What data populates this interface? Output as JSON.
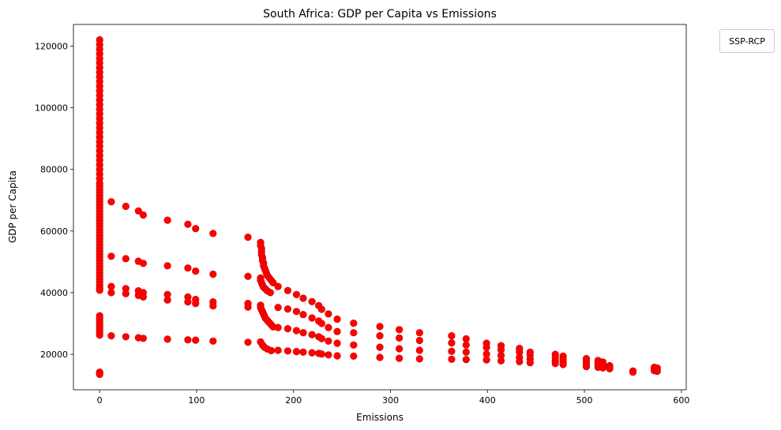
{
  "chart_data": {
    "type": "scatter",
    "title": "South Africa: GDP per Capita vs Emissions",
    "xlabel": "Emissions",
    "ylabel": "GDP per Capita",
    "xlim": [
      -27,
      605
    ],
    "ylim": [
      8500,
      127000
    ],
    "xticks": [
      0,
      100,
      200,
      300,
      400,
      500,
      600
    ],
    "yticks": [
      20000,
      40000,
      60000,
      80000,
      100000,
      120000
    ],
    "grid": false,
    "legend": {
      "title": "SSP-RCP",
      "placement": "outside-top-right"
    },
    "marker_color": "#ff0000",
    "marker_edge_color": "#cc0000",
    "series": [
      {
        "points": [
          [
            0,
            122000
          ],
          [
            0,
            120500
          ],
          [
            0,
            119000
          ],
          [
            0,
            117500
          ],
          [
            0,
            116000
          ],
          [
            0,
            114500
          ],
          [
            0,
            113000
          ],
          [
            0,
            111500
          ],
          [
            0,
            110000
          ],
          [
            0,
            108500
          ],
          [
            0,
            107000
          ],
          [
            0,
            105500
          ],
          [
            0,
            104000
          ],
          [
            0,
            102500
          ],
          [
            0,
            101000
          ],
          [
            0,
            99500
          ],
          [
            0,
            98000
          ],
          [
            0,
            96500
          ],
          [
            0,
            95000
          ],
          [
            0,
            93500
          ],
          [
            0,
            92000
          ],
          [
            0,
            90500
          ],
          [
            0,
            89000
          ],
          [
            0,
            87500
          ],
          [
            0,
            86000
          ],
          [
            0,
            84500
          ],
          [
            0,
            83000
          ],
          [
            0,
            81500
          ],
          [
            0,
            80000
          ],
          [
            0,
            78500
          ],
          [
            0,
            77000
          ],
          [
            0,
            75500
          ],
          [
            0,
            74500
          ],
          [
            0,
            73500
          ],
          [
            0,
            72500
          ],
          [
            0,
            71500
          ],
          [
            0,
            70500
          ],
          [
            0,
            69500
          ],
          [
            0,
            68500
          ],
          [
            0,
            67500
          ],
          [
            0,
            66500
          ],
          [
            0,
            65500
          ],
          [
            0,
            64500
          ],
          [
            0,
            63500
          ],
          [
            0,
            62500
          ],
          [
            0,
            61500
          ],
          [
            0,
            60500
          ],
          [
            0,
            59500
          ],
          [
            0,
            58500
          ],
          [
            0,
            57500
          ],
          [
            0,
            56500
          ],
          [
            0,
            55500
          ],
          [
            0,
            54500
          ],
          [
            0,
            53500
          ],
          [
            0,
            52500
          ],
          [
            0,
            51500
          ],
          [
            0,
            50500
          ],
          [
            0,
            49500
          ],
          [
            0,
            48500
          ],
          [
            0,
            47500
          ],
          [
            0,
            46500
          ],
          [
            0,
            45500
          ],
          [
            0,
            44500
          ],
          [
            0,
            43500
          ],
          [
            0,
            42500
          ],
          [
            0,
            41500
          ],
          [
            0,
            40800
          ],
          [
            0,
            32500
          ],
          [
            0,
            31800
          ],
          [
            0,
            31000
          ],
          [
            0,
            30200
          ],
          [
            0,
            29400
          ],
          [
            0,
            28600
          ],
          [
            0,
            27800
          ],
          [
            0,
            27000
          ],
          [
            0,
            26200
          ],
          [
            0,
            14200
          ],
          [
            0,
            13800
          ],
          [
            0,
            13500
          ],
          [
            12,
            69500
          ],
          [
            27,
            68000
          ],
          [
            40,
            66500
          ],
          [
            45,
            65200
          ],
          [
            70,
            63500
          ],
          [
            91,
            62200
          ],
          [
            99,
            60800
          ],
          [
            117,
            59200
          ],
          [
            153,
            58000
          ],
          [
            166,
            56300
          ],
          [
            166,
            55300
          ],
          [
            167,
            54300
          ],
          [
            167,
            53300
          ],
          [
            167,
            52300
          ],
          [
            168,
            51400
          ],
          [
            168,
            50500
          ],
          [
            169,
            49600
          ],
          [
            169,
            48800
          ],
          [
            170,
            48000
          ],
          [
            171,
            47200
          ],
          [
            172,
            46400
          ],
          [
            173,
            45600
          ],
          [
            175,
            44800
          ],
          [
            177,
            44000
          ],
          [
            179,
            43200
          ],
          [
            12,
            51800
          ],
          [
            27,
            51000
          ],
          [
            40,
            50200
          ],
          [
            45,
            49500
          ],
          [
            70,
            48700
          ],
          [
            91,
            48000
          ],
          [
            99,
            47000
          ],
          [
            117,
            46000
          ],
          [
            153,
            45300
          ],
          [
            166,
            44800
          ],
          [
            166,
            44000
          ],
          [
            167,
            43200
          ],
          [
            168,
            42500
          ],
          [
            169,
            41800
          ],
          [
            171,
            41200
          ],
          [
            173,
            40600
          ],
          [
            176,
            40000
          ],
          [
            184,
            42000
          ],
          [
            194,
            40700
          ],
          [
            203,
            39400
          ],
          [
            210,
            38200
          ],
          [
            219,
            37100
          ],
          [
            226,
            35800
          ],
          [
            229,
            34600
          ],
          [
            236,
            33100
          ],
          [
            245,
            31400
          ],
          [
            12,
            42000
          ],
          [
            27,
            41300
          ],
          [
            40,
            40600
          ],
          [
            45,
            40000
          ],
          [
            70,
            39400
          ],
          [
            91,
            38600
          ],
          [
            99,
            37800
          ],
          [
            117,
            37000
          ],
          [
            153,
            36500
          ],
          [
            166,
            35900
          ],
          [
            166,
            35200
          ],
          [
            167,
            34500
          ],
          [
            168,
            33800
          ],
          [
            169,
            33100
          ],
          [
            170,
            32400
          ],
          [
            171,
            31700
          ],
          [
            173,
            31000
          ],
          [
            175,
            30300
          ],
          [
            177,
            29600
          ],
          [
            179,
            28900
          ],
          [
            184,
            35200
          ],
          [
            194,
            34700
          ],
          [
            203,
            33900
          ],
          [
            210,
            32900
          ],
          [
            219,
            31800
          ],
          [
            226,
            30800
          ],
          [
            229,
            30000
          ],
          [
            236,
            28700
          ],
          [
            245,
            27400
          ],
          [
            12,
            40000
          ],
          [
            27,
            39700
          ],
          [
            40,
            39100
          ],
          [
            45,
            38600
          ],
          [
            70,
            37600
          ],
          [
            91,
            37000
          ],
          [
            99,
            36500
          ],
          [
            117,
            35700
          ],
          [
            153,
            35300
          ],
          [
            184,
            28700
          ],
          [
            194,
            28300
          ],
          [
            203,
            27700
          ],
          [
            210,
            27000
          ],
          [
            219,
            26400
          ],
          [
            226,
            25700
          ],
          [
            229,
            25100
          ],
          [
            236,
            24300
          ],
          [
            245,
            23600
          ],
          [
            166,
            24000
          ],
          [
            168,
            23000
          ],
          [
            170,
            22300
          ],
          [
            173,
            21700
          ],
          [
            177,
            21200
          ],
          [
            184,
            21300
          ],
          [
            194,
            21100
          ],
          [
            203,
            20900
          ],
          [
            210,
            20700
          ],
          [
            219,
            20500
          ],
          [
            226,
            20300
          ],
          [
            229,
            20100
          ],
          [
            236,
            19800
          ],
          [
            245,
            19500
          ],
          [
            12,
            26000
          ],
          [
            27,
            25700
          ],
          [
            40,
            25400
          ],
          [
            45,
            25200
          ],
          [
            70,
            24900
          ],
          [
            91,
            24700
          ],
          [
            99,
            24600
          ],
          [
            117,
            24300
          ],
          [
            153,
            23900
          ],
          [
            262,
            30100
          ],
          [
            262,
            27000
          ],
          [
            262,
            23000
          ],
          [
            262,
            19400
          ],
          [
            289,
            29000
          ],
          [
            289,
            26000
          ],
          [
            289,
            22300
          ],
          [
            289,
            19000
          ],
          [
            309,
            28000
          ],
          [
            309,
            25300
          ],
          [
            309,
            21800
          ],
          [
            309,
            18700
          ],
          [
            330,
            27000
          ],
          [
            330,
            24500
          ],
          [
            330,
            21300
          ],
          [
            330,
            18500
          ],
          [
            363,
            26000
          ],
          [
            363,
            23700
          ],
          [
            363,
            21000
          ],
          [
            363,
            18400
          ],
          [
            378,
            25000
          ],
          [
            378,
            23000
          ],
          [
            378,
            20700
          ],
          [
            378,
            18300
          ],
          [
            399,
            23600
          ],
          [
            399,
            22200
          ],
          [
            399,
            20100
          ],
          [
            399,
            18200
          ],
          [
            414,
            22800
          ],
          [
            414,
            21500
          ],
          [
            414,
            19600
          ],
          [
            414,
            17900
          ],
          [
            433,
            21900
          ],
          [
            433,
            20700
          ],
          [
            433,
            19000
          ],
          [
            433,
            17600
          ],
          [
            444,
            20700
          ],
          [
            444,
            19800
          ],
          [
            444,
            18500
          ],
          [
            444,
            17300
          ],
          [
            470,
            20000
          ],
          [
            470,
            19000
          ],
          [
            470,
            17900
          ],
          [
            470,
            17000
          ],
          [
            478,
            19400
          ],
          [
            478,
            18400
          ],
          [
            478,
            17500
          ],
          [
            478,
            16700
          ],
          [
            502,
            18600
          ],
          [
            502,
            17600
          ],
          [
            502,
            16700
          ],
          [
            502,
            16000
          ],
          [
            514,
            18000
          ],
          [
            514,
            17200
          ],
          [
            514,
            16400
          ],
          [
            514,
            15800
          ],
          [
            519,
            17500
          ],
          [
            519,
            16800
          ],
          [
            519,
            16200
          ],
          [
            519,
            15600
          ],
          [
            526,
            16300
          ],
          [
            526,
            15800
          ],
          [
            526,
            15300
          ],
          [
            550,
            14600
          ],
          [
            550,
            14200
          ],
          [
            572,
            15800
          ],
          [
            572,
            15200
          ],
          [
            572,
            14700
          ],
          [
            575,
            15600
          ],
          [
            575,
            15000
          ],
          [
            575,
            14500
          ]
        ]
      }
    ]
  }
}
